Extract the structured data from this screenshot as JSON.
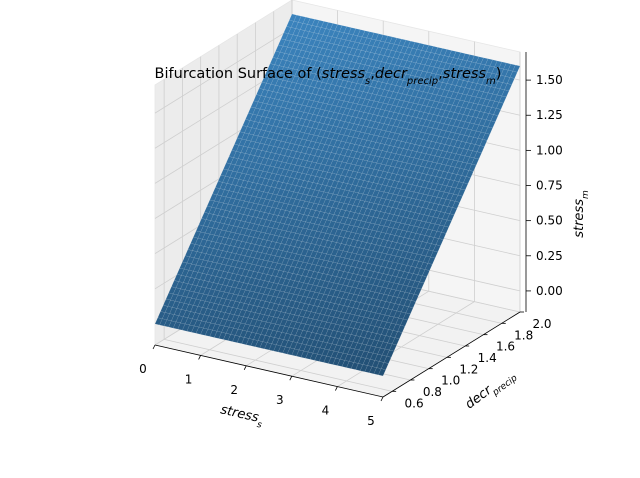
{
  "chart_data": {
    "type": "surface3d",
    "title": {
      "prefix": "Bifurcation Surface of (",
      "parts": [
        {
          "base": "stress",
          "sub": "s"
        },
        {
          "base": "decr",
          "sub": "precip"
        },
        {
          "base": "stress",
          "sub": "m"
        }
      ],
      "separator": ",",
      "suffix": ")"
    },
    "xlabel": {
      "base": "stress",
      "sub": "s"
    },
    "ylabel": {
      "base": "decr",
      "sub": "precip"
    },
    "zlabel": {
      "base": "stress",
      "sub": "m"
    },
    "xticks": [
      "0",
      "1",
      "2",
      "3",
      "4",
      "5"
    ],
    "yticks": [
      "0.6",
      "0.8",
      "1.0",
      "1.2",
      "1.4",
      "1.6",
      "1.8",
      "2.0"
    ],
    "zticks": [
      "0.00",
      "0.25",
      "0.50",
      "0.75",
      "1.00",
      "1.25",
      "1.50"
    ],
    "xlim": [
      0,
      5
    ],
    "ylim": [
      0.5,
      2.0
    ],
    "zlim": [
      -0.15,
      1.7
    ],
    "surface_corners": [
      {
        "x": 0,
        "y": 0.5,
        "z": 0.0
      },
      {
        "x": 5,
        "y": 0.5,
        "z": 0.0
      },
      {
        "x": 5,
        "y": 2.0,
        "z": 1.6
      },
      {
        "x": 0,
        "y": 2.0,
        "z": 1.6
      }
    ],
    "grid": true,
    "surface_color": "#3b84be",
    "surface_dark_color": "#224f74",
    "pane_color": "#f2f2f2"
  }
}
